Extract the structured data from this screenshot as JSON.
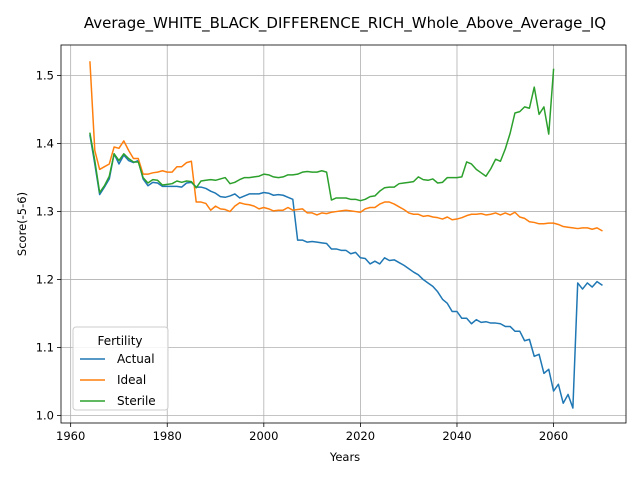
{
  "chart_data": {
    "type": "line",
    "title": "Average_WHITE_BLACK_DIFFERENCE_RICH_Whole_Above_Average_IQ",
    "xlabel": "Years",
    "ylabel": "Score(-5-6)",
    "xlim": [
      1958,
      2075
    ],
    "ylim": [
      0.989,
      1.545
    ],
    "xticks": [
      1960,
      1980,
      2000,
      2020,
      2040,
      2060
    ],
    "yticks": [
      1.0,
      1.1,
      1.2,
      1.3,
      1.4,
      1.5
    ],
    "xtick_labels": [
      "1960",
      "1980",
      "2000",
      "2020",
      "2040",
      "2060"
    ],
    "ytick_labels": [
      "1.0",
      "1.1",
      "1.2",
      "1.3",
      "1.4",
      "1.5"
    ],
    "grid": true,
    "legend": {
      "title": "Fertility",
      "placement": "lower-left"
    },
    "series": [
      {
        "name": "Actual",
        "color": "#1f77b4",
        "x": [
          1964,
          1965,
          1966,
          1967,
          1968,
          1969,
          1970,
          1971,
          1972,
          1973,
          1974,
          1975,
          1976,
          1977,
          1978,
          1979,
          1980,
          1981,
          1982,
          1983,
          1984,
          1985,
          1986,
          1987,
          1988,
          1989,
          1990,
          1991,
          1992,
          1993,
          1994,
          1995,
          1996,
          1997,
          1998,
          1999,
          2000,
          2001,
          2002,
          2003,
          2004,
          2005,
          2006,
          2007,
          2008,
          2009,
          2010,
          2011,
          2012,
          2013,
          2014,
          2015,
          2016,
          2017,
          2018,
          2019,
          2020,
          2021,
          2022,
          2023,
          2024,
          2025,
          2026,
          2027,
          2028,
          2029,
          2030,
          2031,
          2032,
          2033,
          2034,
          2035,
          2036,
          2037,
          2038,
          2039,
          2040,
          2041,
          2042,
          2043,
          2044,
          2045,
          2046,
          2047,
          2048,
          2049,
          2050,
          2051,
          2052,
          2053,
          2054,
          2055,
          2056,
          2057,
          2058,
          2059,
          2060,
          2061,
          2062,
          2063,
          2064,
          2065,
          2066,
          2067,
          2068,
          2069,
          2070
        ],
        "values": [
          1.412,
          1.37,
          1.325,
          1.336,
          1.348,
          1.385,
          1.37,
          1.383,
          1.375,
          1.372,
          1.375,
          1.348,
          1.338,
          1.343,
          1.342,
          1.337,
          1.337,
          1.337,
          1.337,
          1.336,
          1.342,
          1.343,
          1.336,
          1.336,
          1.334,
          1.33,
          1.327,
          1.322,
          1.321,
          1.323,
          1.326,
          1.32,
          1.323,
          1.326,
          1.326,
          1.326,
          1.328,
          1.327,
          1.324,
          1.325,
          1.324,
          1.321,
          1.318,
          1.258,
          1.258,
          1.255,
          1.256,
          1.255,
          1.254,
          1.253,
          1.245,
          1.245,
          1.243,
          1.243,
          1.238,
          1.24,
          1.232,
          1.231,
          1.223,
          1.227,
          1.223,
          1.232,
          1.228,
          1.229,
          1.225,
          1.221,
          1.216,
          1.211,
          1.207,
          1.2,
          1.195,
          1.19,
          1.182,
          1.171,
          1.165,
          1.153,
          1.153,
          1.143,
          1.143,
          1.135,
          1.141,
          1.137,
          1.138,
          1.136,
          1.136,
          1.135,
          1.131,
          1.131,
          1.124,
          1.124,
          1.11,
          1.112,
          1.087,
          1.09,
          1.062,
          1.068,
          1.036,
          1.046,
          1.018,
          1.031,
          1.011,
          1.195,
          1.186,
          1.195,
          1.189,
          1.197,
          1.192
        ]
      },
      {
        "name": "Ideal",
        "color": "#ff7f0e",
        "x": [
          1964,
          1965,
          1966,
          1967,
          1968,
          1969,
          1970,
          1971,
          1972,
          1973,
          1974,
          1975,
          1976,
          1977,
          1978,
          1979,
          1980,
          1981,
          1982,
          1983,
          1984,
          1985,
          1986,
          1987,
          1988,
          1989,
          1990,
          1991,
          1992,
          1993,
          1994,
          1995,
          1996,
          1997,
          1998,
          1999,
          2000,
          2001,
          2002,
          2003,
          2004,
          2005,
          2006,
          2007,
          2008,
          2009,
          2010,
          2011,
          2012,
          2013,
          2014,
          2015,
          2016,
          2017,
          2018,
          2019,
          2020,
          2021,
          2022,
          2023,
          2024,
          2025,
          2026,
          2027,
          2028,
          2029,
          2030,
          2031,
          2032,
          2033,
          2034,
          2035,
          2036,
          2037,
          2038,
          2039,
          2040,
          2041,
          2042,
          2043,
          2044,
          2045,
          2046,
          2047,
          2048,
          2049,
          2050,
          2051,
          2052,
          2053,
          2054,
          2055,
          2056,
          2057,
          2058,
          2059,
          2060,
          2061,
          2062,
          2063,
          2064,
          2065,
          2066,
          2067,
          2068,
          2069,
          2070
        ],
        "values": [
          1.52,
          1.39,
          1.362,
          1.366,
          1.37,
          1.395,
          1.393,
          1.404,
          1.39,
          1.378,
          1.378,
          1.355,
          1.355,
          1.357,
          1.358,
          1.36,
          1.358,
          1.358,
          1.366,
          1.366,
          1.372,
          1.374,
          1.314,
          1.314,
          1.312,
          1.302,
          1.308,
          1.304,
          1.303,
          1.3,
          1.308,
          1.313,
          1.311,
          1.31,
          1.308,
          1.304,
          1.306,
          1.304,
          1.301,
          1.302,
          1.302,
          1.306,
          1.302,
          1.303,
          1.304,
          1.298,
          1.298,
          1.295,
          1.298,
          1.297,
          1.299,
          1.3,
          1.301,
          1.302,
          1.301,
          1.3,
          1.299,
          1.304,
          1.306,
          1.306,
          1.311,
          1.314,
          1.314,
          1.311,
          1.307,
          1.303,
          1.298,
          1.296,
          1.296,
          1.293,
          1.294,
          1.292,
          1.291,
          1.289,
          1.292,
          1.288,
          1.289,
          1.291,
          1.294,
          1.296,
          1.296,
          1.297,
          1.295,
          1.296,
          1.298,
          1.295,
          1.298,
          1.295,
          1.299,
          1.292,
          1.29,
          1.285,
          1.284,
          1.282,
          1.282,
          1.283,
          1.283,
          1.281,
          1.278,
          1.277,
          1.276,
          1.275,
          1.276,
          1.276,
          1.274,
          1.276,
          1.272
        ]
      },
      {
        "name": "Sterile",
        "color": "#2ca02c",
        "x": [
          1964,
          1965,
          1966,
          1967,
          1968,
          1969,
          1970,
          1971,
          1972,
          1973,
          1974,
          1975,
          1976,
          1977,
          1978,
          1979,
          1980,
          1981,
          1982,
          1983,
          1984,
          1985,
          1986,
          1987,
          1988,
          1989,
          1990,
          1991,
          1992,
          1993,
          1994,
          1995,
          1996,
          1997,
          1998,
          1999,
          2000,
          2001,
          2002,
          2003,
          2004,
          2005,
          2006,
          2007,
          2008,
          2009,
          2010,
          2011,
          2012,
          2013,
          2014,
          2015,
          2016,
          2017,
          2018,
          2019,
          2020,
          2021,
          2022,
          2023,
          2024,
          2025,
          2026,
          2027,
          2028,
          2029,
          2030,
          2031,
          2032,
          2033,
          2034,
          2035,
          2036,
          2037,
          2038,
          2039,
          2040,
          2041,
          2042,
          2043,
          2044,
          2045,
          2046,
          2047,
          2048,
          2049,
          2050,
          2051,
          2052,
          2053,
          2054,
          2055,
          2056,
          2057,
          2058,
          2059,
          2060
        ],
        "values": [
          1.415,
          1.375,
          1.328,
          1.338,
          1.352,
          1.385,
          1.375,
          1.385,
          1.378,
          1.373,
          1.373,
          1.35,
          1.342,
          1.347,
          1.346,
          1.339,
          1.34,
          1.341,
          1.345,
          1.343,
          1.345,
          1.344,
          1.335,
          1.345,
          1.346,
          1.347,
          1.346,
          1.348,
          1.35,
          1.341,
          1.343,
          1.347,
          1.35,
          1.35,
          1.351,
          1.352,
          1.355,
          1.354,
          1.351,
          1.35,
          1.351,
          1.354,
          1.354,
          1.355,
          1.358,
          1.359,
          1.358,
          1.358,
          1.36,
          1.358,
          1.317,
          1.32,
          1.32,
          1.32,
          1.318,
          1.318,
          1.316,
          1.318,
          1.322,
          1.323,
          1.33,
          1.335,
          1.336,
          1.336,
          1.341,
          1.342,
          1.343,
          1.344,
          1.351,
          1.347,
          1.346,
          1.348,
          1.342,
          1.343,
          1.35,
          1.35,
          1.35,
          1.351,
          1.373,
          1.37,
          1.362,
          1.357,
          1.352,
          1.363,
          1.377,
          1.374,
          1.392,
          1.415,
          1.445,
          1.447,
          1.454,
          1.452,
          1.483,
          1.443,
          1.454,
          1.414,
          1.509
        ]
      }
    ]
  }
}
